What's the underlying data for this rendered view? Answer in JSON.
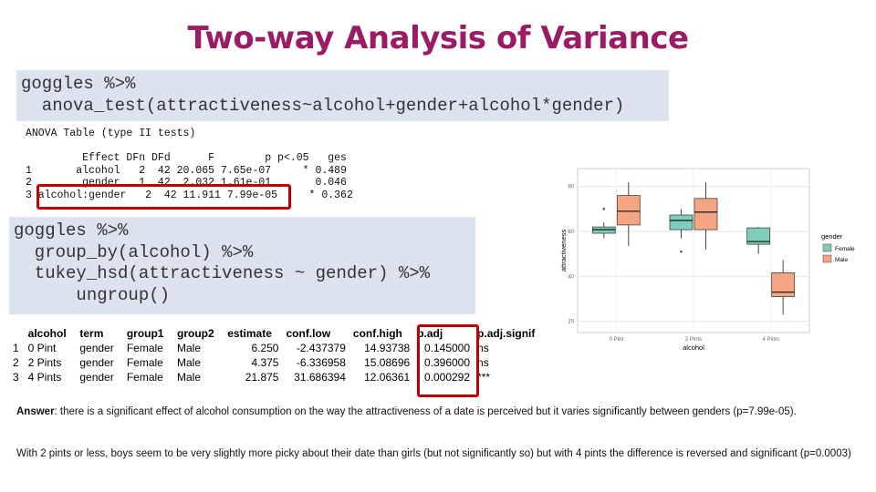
{
  "header": {
    "title": "Two-way Analysis of Variance"
  },
  "code1": {
    "lines": [
      "goggles %>%",
      "  anova_test(attractiveness~alcohol+gender+alcohol*gender)"
    ]
  },
  "anova_table": {
    "caption": "ANOVA Table (type II tests)",
    "lines": [
      "         Effect DFn DFd      F        p p<.05   ges",
      "1       alcohol   2  42 20.065 7.65e-07     * 0.489",
      "2        gender   1  42  2.032 1.61e-01       0.046",
      "3 alcohol:gender   2  42 11.911 7.99e-05     * 0.362"
    ]
  },
  "code2": {
    "lines": [
      "goggles %>%",
      "  group_by(alcohol) %>%",
      "  tukey_hsd(attractiveness ~ gender) %>%",
      "      ungroup()"
    ]
  },
  "tukey_table": {
    "columns": [
      "alcohol",
      "term",
      "group1",
      "group2",
      "estimate",
      "conf.low",
      "conf.high",
      "p.adj",
      "p.adj.signif"
    ],
    "rows": [
      [
        "1",
        "0 Pint",
        "gender",
        "Female",
        "Male",
        "6.250",
        "-2.437379",
        "14.93738",
        "0.145000",
        "ns"
      ],
      [
        "2",
        "2 Pints",
        "gender",
        "Female",
        "Male",
        "4.375",
        "-6.336958",
        "15.08696",
        "0.396000",
        "ns"
      ],
      [
        "3",
        "4 Pints",
        "gender",
        "Female",
        "Male",
        "21.875",
        "31.686394",
        "12.06361",
        "0.000292",
        "***"
      ]
    ]
  },
  "chart_data": {
    "type": "box",
    "x_label": "alcohol",
    "y_label": "attractiveness",
    "legend_title": "gender",
    "categories": [
      "0 Pint",
      "2 Pints",
      "4 Pints"
    ],
    "ylim": [
      15,
      88
    ],
    "yticks": [
      20,
      40,
      60,
      80
    ],
    "grid": true,
    "series": [
      {
        "name": "Female",
        "color": "#7fcdbb",
        "values": [
          {
            "min": 57,
            "q1": 59.2,
            "median": 60.8,
            "q3": 62,
            "max": 64
          },
          {
            "min": 57,
            "q1": 60.8,
            "median": 64.9,
            "q3": 67.3,
            "max": 70
          },
          {
            "min": 50,
            "q1": 54.3,
            "median": 55.5,
            "q3": 61.6,
            "max": 62
          }
        ],
        "outliers": [
          [
            70
          ],
          [
            51
          ],
          []
        ]
      },
      {
        "name": "Male",
        "color": "#f4a582",
        "values": [
          {
            "min": 53.5,
            "q1": 62.9,
            "median": 69,
            "q3": 76,
            "max": 82
          },
          {
            "min": 52,
            "q1": 60.8,
            "median": 68.6,
            "q3": 74.7,
            "max": 82
          },
          {
            "min": 22.9,
            "q1": 31,
            "median": 33,
            "q3": 41.6,
            "max": 47.3
          }
        ],
        "outliers": [
          [],
          [],
          []
        ]
      }
    ]
  },
  "answer": {
    "label": "Answer",
    "text": ": there is a significant effect of alcohol consumption on the way the attractiveness of a date is perceived but it varies significantly between genders (p=7.99e-05).",
    "paragraph2": "With 2 pints or less, boys seem to be very slightly more picky about their date than girls (but not significantly so) but with 4 pints the difference is reversed and significant (p=0.0003)"
  }
}
